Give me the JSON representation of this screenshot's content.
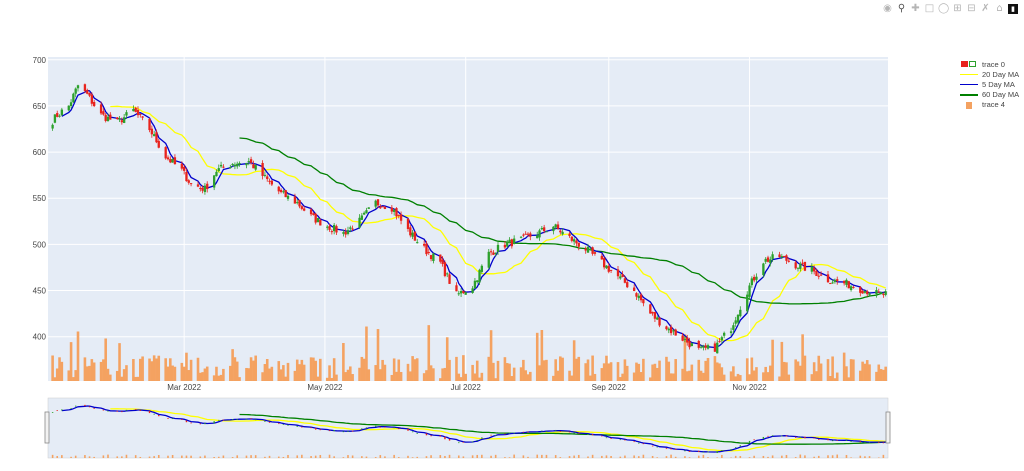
{
  "modebar": {
    "icons": [
      "camera-icon",
      "zoom-icon",
      "pan-icon",
      "box-select-icon",
      "lasso-icon",
      "zoom-in-icon",
      "zoom-out-icon",
      "autoscale-icon",
      "reset-axes-icon",
      "plotly-logo-icon"
    ]
  },
  "legend": {
    "items": [
      {
        "label": "trace 0",
        "kind": "candle",
        "color": "#e8231d",
        "color2": "#2ca02c"
      },
      {
        "label": "20 Day MA",
        "kind": "line",
        "color": "#ffff00"
      },
      {
        "label": "5 Day MA",
        "kind": "line",
        "color": "#0000cc"
      },
      {
        "label": "60 Day MA",
        "kind": "line",
        "color": "#008000"
      },
      {
        "label": "trace 4",
        "kind": "bar",
        "color": "#f4a261"
      }
    ]
  },
  "chart_data": {
    "type": "candlestick",
    "x_start": "2022-01-01",
    "x_end": "2022-12-31",
    "x_ticks": [
      {
        "date": "2022-03-01",
        "label": "Mar 2022"
      },
      {
        "date": "2022-05-01",
        "label": "May 2022"
      },
      {
        "date": "2022-07-01",
        "label": "Jul 2022"
      },
      {
        "date": "2022-09-01",
        "label": "Sep 2022"
      },
      {
        "date": "2022-11-01",
        "label": "Nov 2022"
      }
    ],
    "y_ticks": [
      400,
      450,
      500,
      550,
      600,
      650,
      700
    ],
    "ylim": [
      352,
      703
    ],
    "grid": true,
    "legend_position": "right",
    "price_series_name": "trace 0",
    "volume_series_name": "trace 4",
    "close_anchors": [
      [
        "2022-01-01",
        628
      ],
      [
        "2022-01-05",
        640
      ],
      [
        "2022-01-10",
        650
      ],
      [
        "2022-01-14",
        672
      ],
      [
        "2022-01-18",
        662
      ],
      [
        "2022-01-24",
        640
      ],
      [
        "2022-01-31",
        632
      ],
      [
        "2022-02-07",
        645
      ],
      [
        "2022-02-14",
        625
      ],
      [
        "2022-02-21",
        595
      ],
      [
        "2022-02-28",
        580
      ],
      [
        "2022-03-04",
        565
      ],
      [
        "2022-03-10",
        560
      ],
      [
        "2022-03-15",
        580
      ],
      [
        "2022-03-22",
        588
      ],
      [
        "2022-03-29",
        590
      ],
      [
        "2022-04-05",
        572
      ],
      [
        "2022-04-12",
        555
      ],
      [
        "2022-04-19",
        545
      ],
      [
        "2022-04-25",
        530
      ],
      [
        "2022-05-02",
        520
      ],
      [
        "2022-05-09",
        512
      ],
      [
        "2022-05-16",
        525
      ],
      [
        "2022-05-23",
        545
      ],
      [
        "2022-05-30",
        540
      ],
      [
        "2022-06-06",
        515
      ],
      [
        "2022-06-13",
        495
      ],
      [
        "2022-06-20",
        480
      ],
      [
        "2022-06-27",
        445
      ],
      [
        "2022-07-04",
        455
      ],
      [
        "2022-07-11",
        490
      ],
      [
        "2022-07-18",
        500
      ],
      [
        "2022-07-25",
        505
      ],
      [
        "2022-08-01",
        512
      ],
      [
        "2022-08-08",
        520
      ],
      [
        "2022-08-15",
        507
      ],
      [
        "2022-08-22",
        495
      ],
      [
        "2022-08-29",
        480
      ],
      [
        "2022-09-05",
        465
      ],
      [
        "2022-09-12",
        450
      ],
      [
        "2022-09-19",
        425
      ],
      [
        "2022-09-26",
        410
      ],
      [
        "2022-10-03",
        398
      ],
      [
        "2022-10-10",
        385
      ],
      [
        "2022-10-17",
        388
      ],
      [
        "2022-10-24",
        410
      ],
      [
        "2022-10-31",
        450
      ],
      [
        "2022-11-07",
        482
      ],
      [
        "2022-11-14",
        487
      ],
      [
        "2022-11-21",
        478
      ],
      [
        "2022-11-28",
        472
      ],
      [
        "2022-12-05",
        462
      ],
      [
        "2022-12-12",
        458
      ],
      [
        "2022-12-19",
        452
      ],
      [
        "2022-12-27",
        446
      ]
    ],
    "volume_range": [
      355,
      420
    ]
  }
}
